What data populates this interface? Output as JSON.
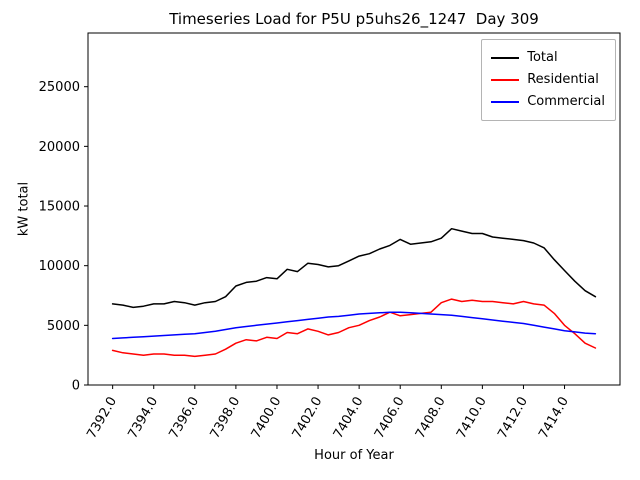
{
  "figure": {
    "title": "Timeseries Load for P5U p5uhs26_1247  Day 309",
    "xlabel": "Hour of Year",
    "ylabel": "kW total"
  },
  "legend": {
    "entries": [
      {
        "label": "Total",
        "color": "#000000"
      },
      {
        "label": "Residential",
        "color": "#ff0000"
      },
      {
        "label": "Commercial",
        "color": "#0000ff"
      }
    ]
  },
  "chart_data": {
    "type": "line",
    "title": "Timeseries Load for P5U p5uhs26_1247  Day 309",
    "xlabel": "Hour of Year",
    "ylabel": "kW total",
    "grid": false,
    "legend_position": "upper right",
    "xlim": [
      7390.8,
      7416.7
    ],
    "ylim": [
      0,
      29500
    ],
    "x_ticks": [
      7392,
      7394,
      7396,
      7398,
      7400,
      7402,
      7404,
      7406,
      7408,
      7410,
      7412,
      7414
    ],
    "x_tick_labels": [
      "7392.0",
      "7394.0",
      "7396.0",
      "7398.0",
      "7400.0",
      "7402.0",
      "7404.0",
      "7406.0",
      "7408.0",
      "7410.0",
      "7412.0",
      "7414.0"
    ],
    "y_ticks": [
      0,
      5000,
      10000,
      15000,
      20000,
      25000
    ],
    "y_tick_labels": [
      "0",
      "5000",
      "10000",
      "15000",
      "20000",
      "25000"
    ],
    "x": [
      7392,
      7392.5,
      7393,
      7393.5,
      7394,
      7394.5,
      7395,
      7395.5,
      7396,
      7396.5,
      7397,
      7397.5,
      7398,
      7398.5,
      7399,
      7399.5,
      7400,
      7400.5,
      7401,
      7401.5,
      7402,
      7402.5,
      7403,
      7403.5,
      7404,
      7404.5,
      7405,
      7405.5,
      7406,
      7406.5,
      7407,
      7407.5,
      7408,
      7408.5,
      7409,
      7409.5,
      7410,
      7410.5,
      7411,
      7411.5,
      7412,
      7412.5,
      7413,
      7413.5,
      7414,
      7414.5,
      7415,
      7415.5
    ],
    "series": [
      {
        "name": "Total",
        "color": "#000000",
        "values": [
          6800,
          6700,
          6500,
          6600,
          6800,
          6800,
          7000,
          6900,
          6700,
          6900,
          7000,
          7400,
          8300,
          8600,
          8700,
          9000,
          8900,
          9700,
          9500,
          10200,
          10100,
          9900,
          10000,
          10400,
          10800,
          11000,
          11400,
          11700,
          12200,
          11800,
          11900,
          12000,
          12300,
          13100,
          12900,
          12700,
          12700,
          12400,
          12300,
          12200,
          12100,
          11900,
          11500,
          10500,
          9600,
          8700,
          7900,
          7400
        ]
      },
      {
        "name": "Residential",
        "color": "#ff0000",
        "values": [
          2900,
          2700,
          2600,
          2500,
          2600,
          2600,
          2500,
          2500,
          2400,
          2500,
          2600,
          3000,
          3500,
          3800,
          3700,
          4000,
          3900,
          4400,
          4300,
          4700,
          4500,
          4200,
          4400,
          4800,
          5000,
          5400,
          5700,
          6100,
          5800,
          5900,
          6000,
          6100,
          6900,
          7200,
          7000,
          7100,
          7000,
          7000,
          6900,
          6800,
          7000,
          6800,
          6700,
          6000,
          5000,
          4300,
          3500,
          3100
        ]
      },
      {
        "name": "Commercial",
        "color": "#0000ff",
        "values": [
          3900,
          3950,
          4000,
          4050,
          4100,
          4150,
          4200,
          4250,
          4300,
          4400,
          4500,
          4650,
          4800,
          4900,
          5000,
          5100,
          5200,
          5300,
          5400,
          5500,
          5600,
          5700,
          5750,
          5850,
          5950,
          6000,
          6050,
          6100,
          6100,
          6050,
          6000,
          5950,
          5900,
          5850,
          5750,
          5650,
          5550,
          5450,
          5350,
          5250,
          5150,
          5000,
          4850,
          4700,
          4550,
          4450,
          4350,
          4300
        ]
      }
    ]
  }
}
